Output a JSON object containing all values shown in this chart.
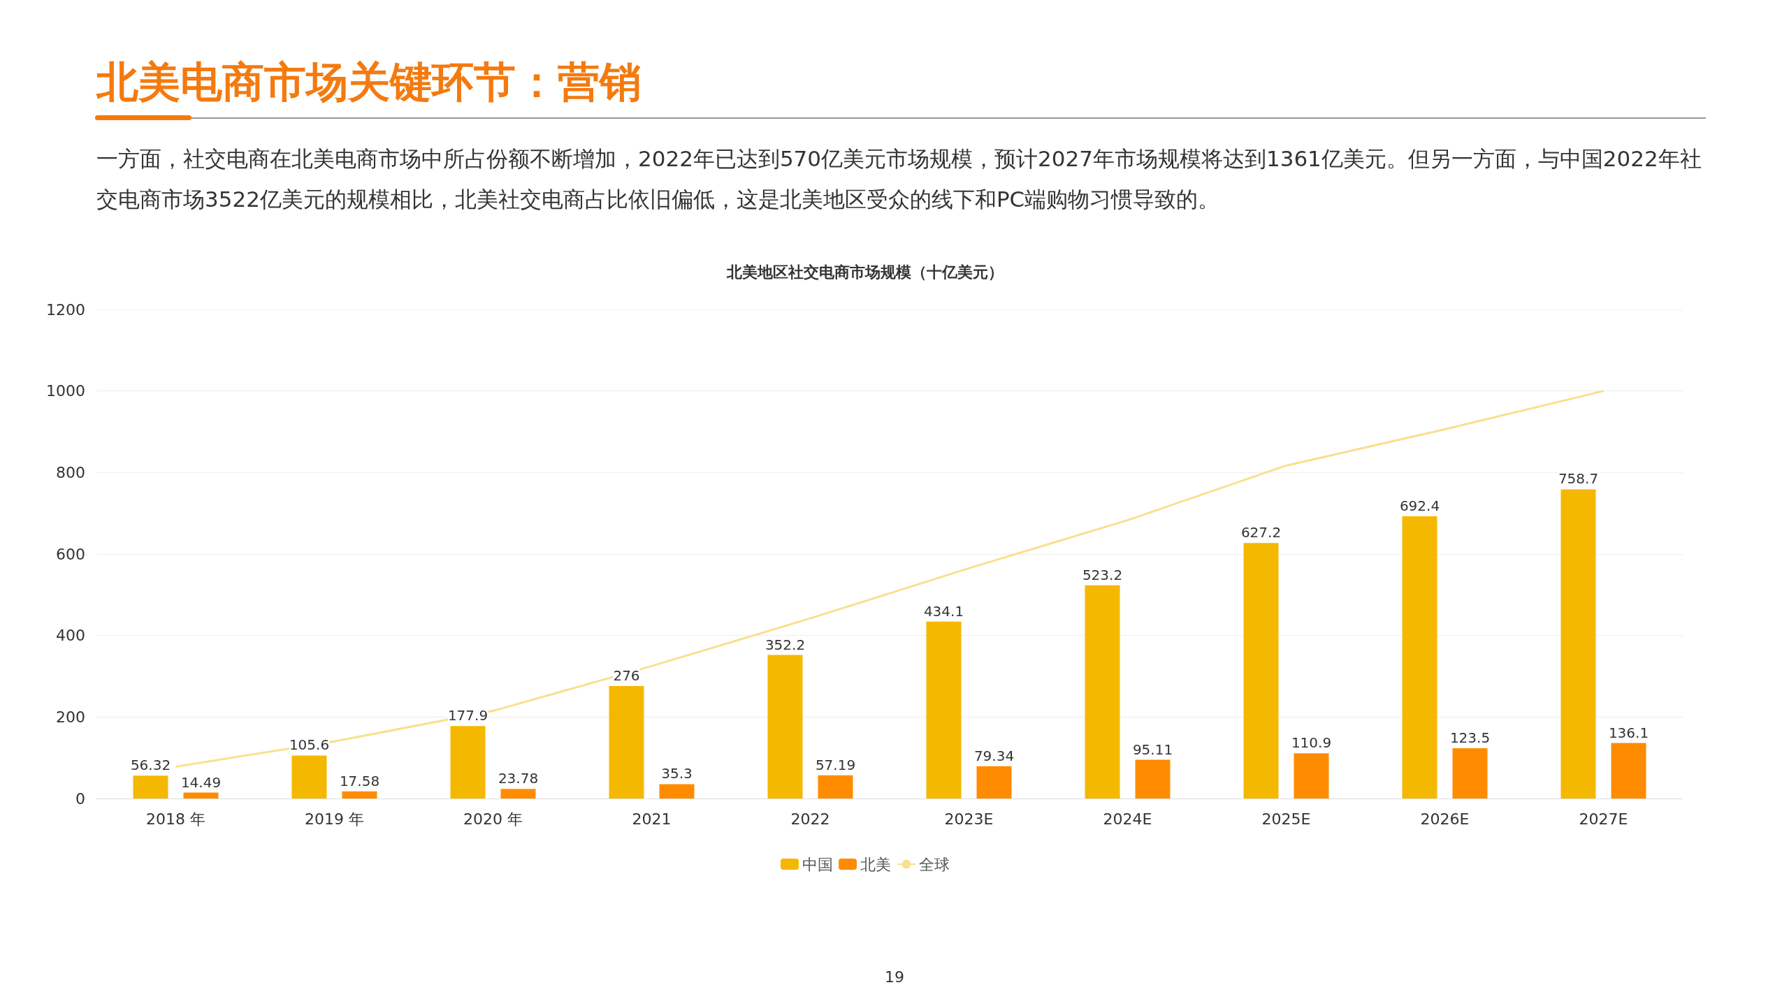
{
  "chart_data": {
    "type": "bar",
    "title": "北美地区社交电商市场规模（十亿美元）",
    "annotations": [
      "北美电商市场关键环节：营销",
      "一方面，社交电商在北美电商市场中所占份额不断增加，2022年已达到570亿美元市场规模，预计2027年市场规模将达到1361亿美元。但另一方面，与中国2022年社交电商市场3522亿美元的规模相比，北美社交电商占比依旧偏低，这是北美地区受众的线下和PC端购物习惯导致的。",
      "19"
    ],
    "categories": [
      "2018 年",
      "2019 年",
      "2020 年",
      "2021",
      "2022",
      "2023E",
      "2024E",
      "2025E",
      "2026E",
      "2027E"
    ],
    "series": [
      {
        "name": "中国",
        "color": "#f5b800",
        "values": [
          56.32,
          105.6,
          177.9,
          276,
          352.2,
          434.1,
          523.2,
          627.2,
          692.4,
          758.7
        ],
        "value_labels": [
          "56.32",
          "105.6",
          "177.9",
          "276",
          "352.2",
          "434.1",
          "523.2",
          "627.2",
          "692.4",
          "758.7"
        ]
      },
      {
        "name": "北美",
        "color": "#ff8c00",
        "values": [
          14.49,
          17.58,
          23.78,
          35.3,
          57.19,
          79.34,
          95.11,
          110.9,
          123.5,
          136.1
        ],
        "value_labels": [
          "14.49",
          "17.58",
          "23.78",
          "35.3",
          "57.19",
          "79.34",
          "95.11",
          "110.9",
          "123.5",
          "136.1"
        ]
      },
      {
        "name": "全球",
        "type": "line",
        "color": "#f8e08e",
        "values": [
          78,
          140,
          215,
          325,
          442,
          565,
          683,
          817,
          906,
          1000
        ]
      }
    ],
    "ylim": [
      0,
      1200
    ],
    "yticks": [
      0,
      200,
      400,
      600,
      800,
      1000,
      1200
    ],
    "grid": "y",
    "legend": "bottom",
    "marker": "none"
  }
}
